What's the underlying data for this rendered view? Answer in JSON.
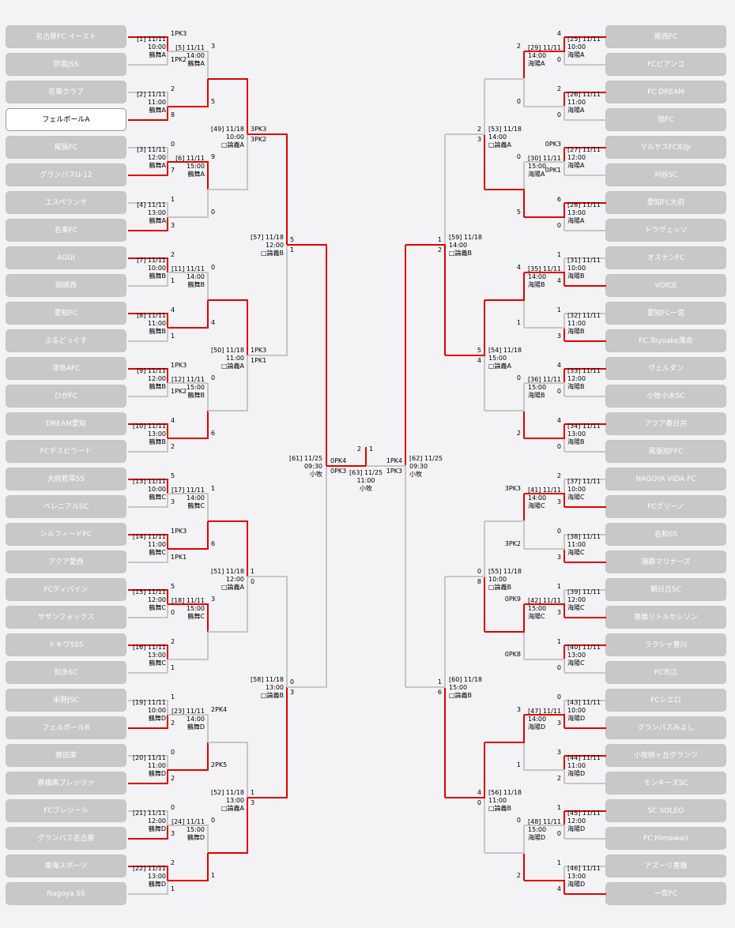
{
  "left_teams": [
    "名古屋FC イースト",
    "弥富JSS",
    "名東クラブ",
    "フェルボールA",
    "尾張FC",
    "グランパスU-12",
    "エスペランサ",
    "名東FC",
    "AGUI",
    "岡崎西",
    "愛知FC",
    "ぶるどっぐす",
    "津島AFC",
    "ひがFC",
    "DREAM愛知",
    "FCデスピラード",
    "大府若草SS",
    "ペレニアルSC",
    "シルフィードFC",
    "アクア愛西",
    "FCディバイン",
    "サザンフォックス",
    "トキワSSS",
    "知多SC",
    "米野JSC",
    "フェルボールB",
    "豊田東",
    "豊橋南ブレッツァ",
    "FCブレジール",
    "グランパス名古屋",
    "東海スポーツ",
    "Nagoya SS"
  ],
  "right_teams": [
    "尾西FC",
    "FCピアンコ",
    "FC DREAM",
    "旭FC",
    "マルヤスFC83Jr",
    "刈谷SC",
    "愛知FC大府",
    "トラヴェッソ",
    "オステンFC",
    "VOICE",
    "愛知FC一宮",
    "FC.Toyoake落合",
    "ヴェルダン",
    "小牧小木SC",
    "アクア春日井",
    "尾張旭FFC",
    "NAGOYA VIDA FC",
    "FCグリーノ",
    "名和SS",
    "蒲郡マリナーズ",
    "朝日丘SC",
    "豊橋リトルセレソン",
    "ララシャ豊川",
    "FC市江",
    "FCシエロ",
    "グランパスみよし",
    "小牧桃ヶ丘グランツ",
    "モンキーズSC",
    "SC SOLEO",
    "FC Himawari",
    "アズーリ豊橋",
    "一宮FC"
  ],
  "selected_team": "フェルボールA",
  "r1_left": [
    {
      "info": [
        "[1] 11/11",
        "10:00",
        "鶴舞A"
      ],
      "top": "1PK3",
      "bot": "1PK2",
      "win": "top"
    },
    {
      "info": [
        "[2] 11/11",
        "11:00",
        "鶴舞A"
      ],
      "top": "2",
      "bot": "8",
      "win": "bot"
    },
    {
      "info": [
        "[3] 11/11",
        "12:00",
        "鶴舞A"
      ],
      "top": "0",
      "bot": "7",
      "win": "bot"
    },
    {
      "info": [
        "[4] 11/11",
        "13:00",
        "鶴舞A"
      ],
      "top": "1",
      "bot": "3",
      "win": "bot"
    },
    {
      "info": [
        "[7] 11/11",
        "10:00",
        "鶴舞B"
      ],
      "top": "2",
      "bot": "1",
      "win": "top"
    },
    {
      "info": [
        "[8] 11/11",
        "11:00",
        "鶴舞B"
      ],
      "top": "4",
      "bot": "1",
      "win": "top"
    },
    {
      "info": [
        "[9] 11/11",
        "12:00",
        "鶴舞B"
      ],
      "top": "1PK3",
      "bot": "1PK2",
      "win": "top"
    },
    {
      "info": [
        "[10] 11/11",
        "13:00",
        "鶴舞B"
      ],
      "top": "4",
      "bot": "2",
      "win": "top"
    },
    {
      "info": [
        "[13] 11/11",
        "10:00",
        "鶴舞C"
      ],
      "top": "5",
      "bot": "3",
      "win": "top"
    },
    {
      "info": [
        "[14] 11/11",
        "11:00",
        "鶴舞C"
      ],
      "top": "1PK3",
      "bot": "1PK1",
      "win": "top"
    },
    {
      "info": [
        "[15] 11/11",
        "12:00",
        "鶴舞C"
      ],
      "top": "5",
      "bot": "0",
      "win": "top"
    },
    {
      "info": [
        "[16] 11/11",
        "13:00",
        "鶴舞C"
      ],
      "top": "2",
      "bot": "1",
      "win": "top"
    },
    {
      "info": [
        "[19] 11/11",
        "10:00",
        "鶴舞D"
      ],
      "top": "1",
      "bot": "2",
      "win": "bot"
    },
    {
      "info": [
        "[20] 11/11",
        "11:00",
        "鶴舞D"
      ],
      "top": "0",
      "bot": "2",
      "win": "bot"
    },
    {
      "info": [
        "[21] 11/11",
        "12:00",
        "鶴舞D"
      ],
      "top": "0",
      "bot": "3",
      "win": "bot"
    },
    {
      "info": [
        "[22] 11/11",
        "13:00",
        "鶴舞D"
      ],
      "top": "2",
      "bot": "1",
      "win": "top"
    }
  ],
  "r2_left": [
    {
      "info": [
        "[5] 11/11",
        "14:00",
        "鶴舞A"
      ],
      "top": "3",
      "bot": "5",
      "win": "bot"
    },
    {
      "info": [
        "[6] 11/11",
        "15:00",
        "鶴舞A"
      ],
      "top": "9",
      "bot": "0",
      "win": "top"
    },
    {
      "info": [
        "[11] 11/11",
        "14:00",
        "鶴舞B"
      ],
      "top": "0",
      "bot": "4",
      "win": "bot"
    },
    {
      "info": [
        "[12] 11/11",
        "15:00",
        "鶴舞B"
      ],
      "top": "0",
      "bot": "6",
      "win": "bot"
    },
    {
      "info": [
        "[17] 11/11",
        "14:00",
        "鶴舞C"
      ],
      "top": "1",
      "bot": "6",
      "win": "bot"
    },
    {
      "info": [
        "[18] 11/11",
        "15:00",
        "鶴舞C"
      ],
      "top": "3",
      "bot": "",
      "win": "top"
    },
    {
      "info": [
        "[23] 11/11",
        "14:00",
        "鶴舞D"
      ],
      "top": "2PK4",
      "bot": "2PK5",
      "win": "bot"
    },
    {
      "info": [
        "[24] 11/11",
        "15:00",
        "鶴舞D"
      ],
      "top": "0",
      "bot": "1",
      "win": "bot"
    }
  ],
  "r3_left": [
    {
      "info": [
        "[49] 11/18",
        "10:00",
        "□論義A"
      ],
      "top": "3PK3",
      "bot": "3PK2",
      "win": "top"
    },
    {
      "info": [
        "[50] 11/18",
        "11:00",
        "□論義A"
      ],
      "top": "1PK3",
      "bot": "1PK1",
      "win": "top"
    },
    {
      "info": [
        "[51] 11/18",
        "12:00",
        "□論義A"
      ],
      "top": "1",
      "bot": "0",
      "win": "top"
    },
    {
      "info": [
        "[52] 11/18",
        "13:00",
        "□論義A"
      ],
      "top": "1",
      "bot": "3",
      "win": "bot"
    }
  ],
  "r4_left": [
    {
      "info": [
        "[57] 11/18",
        "12:00",
        "□論義B"
      ],
      "top": "5",
      "bot": "1",
      "win": "top"
    },
    {
      "info": [
        "[58] 11/18",
        "13:00",
        "□論義B"
      ],
      "top": "0",
      "bot": "3",
      "win": "bot"
    }
  ],
  "r5_left": {
    "info": [
      "[61] 11/25",
      "09:30",
      "小牧"
    ],
    "top": "0PK4",
    "bot": "0PK3",
    "win": "top"
  },
  "r1_right": [
    {
      "info": [
        "[25] 11/11",
        "10:00",
        "海陽A"
      ],
      "top": "4",
      "bot": "0",
      "win": "top"
    },
    {
      "info": [
        "[26] 11/11",
        "11:00",
        "海陽A"
      ],
      "top": "2",
      "bot": "0",
      "win": "top"
    },
    {
      "info": [
        "[27] 11/11",
        "12:00",
        "海陽A"
      ],
      "top": "0PK3",
      "bot": "0PK1",
      "win": "top"
    },
    {
      "info": [
        "[28] 11/11",
        "13:00",
        "海陽A"
      ],
      "top": "6",
      "bot": "0",
      "win": "top"
    },
    {
      "info": [
        "[31] 11/11",
        "10:00",
        "海陽B"
      ],
      "top": "1",
      "bot": "4",
      "win": "bot"
    },
    {
      "info": [
        "[32] 11/11",
        "11:00",
        "海陽B"
      ],
      "top": "1",
      "bot": "3",
      "win": "bot"
    },
    {
      "info": [
        "[33] 11/11",
        "12:00",
        "海陽B"
      ],
      "top": "4",
      "bot": "0",
      "win": "top"
    },
    {
      "info": [
        "[34] 11/11",
        "13:00",
        "海陽B"
      ],
      "top": "4",
      "bot": "0",
      "win": "top"
    },
    {
      "info": [
        "[37] 11/11",
        "10:00",
        "海陽C"
      ],
      "top": "2",
      "bot": "3",
      "win": "bot"
    },
    {
      "info": [
        "[38] 11/11",
        "11:00",
        "海陽C"
      ],
      "top": "0",
      "bot": "3",
      "win": "bot"
    },
    {
      "info": [
        "[39] 11/11",
        "12:00",
        "海陽C"
      ],
      "top": "1",
      "bot": "3",
      "win": "bot"
    },
    {
      "info": [
        "[40] 11/11",
        "13:00",
        "海陽C"
      ],
      "top": "1",
      "bot": "0",
      "win": "top"
    },
    {
      "info": [
        "[43] 11/11",
        "10:00",
        "海陽D"
      ],
      "top": "0",
      "bot": "3",
      "win": "bot"
    },
    {
      "info": [
        "[44] 11/11",
        "11:00",
        "海陽D"
      ],
      "top": "3",
      "bot": "2",
      "win": "top"
    },
    {
      "info": [
        "[45] 11/11",
        "12:00",
        "海陽D"
      ],
      "top": "1",
      "bot": "0",
      "win": "top"
    },
    {
      "info": [
        "[46] 11/11",
        "13:00",
        "海陽D"
      ],
      "top": "1",
      "bot": "4",
      "win": "bot"
    }
  ],
  "r2_right": [
    {
      "info": [
        "[29] 11/11",
        "14:00",
        "海陽A"
      ],
      "top": "2",
      "bot": "0",
      "win": "top"
    },
    {
      "info": [
        "[30] 11/11",
        "15:00",
        "海陽A"
      ],
      "top": "0",
      "bot": "5",
      "win": "bot"
    },
    {
      "info": [
        "[35] 11/11",
        "14:00",
        "海陽B"
      ],
      "top": "4",
      "bot": "1",
      "win": "top"
    },
    {
      "info": [
        "[36] 11/11",
        "15:00",
        "海陽B"
      ],
      "top": "0",
      "bot": "2",
      "win": "bot"
    },
    {
      "info": [
        "[41] 11/11",
        "14:00",
        "海陽C"
      ],
      "top": "3PK3",
      "bot": "3PK2",
      "win": "top"
    },
    {
      "info": [
        "[42] 11/11",
        "15:00",
        "海陽C"
      ],
      "top": "0PK9",
      "bot": "0PK8",
      "win": "top"
    },
    {
      "info": [
        "[47] 11/11",
        "14:00",
        "海陽D"
      ],
      "top": "3",
      "bot": "1",
      "win": "top"
    },
    {
      "info": [
        "[48] 11/11",
        "15:00",
        "海陽D"
      ],
      "top": "0",
      "bot": "2",
      "win": "bot"
    }
  ],
  "r3_right": [
    {
      "info": [
        "[53] 11/18",
        "14:00",
        "□論義A"
      ],
      "top": "2",
      "bot": "3",
      "win": "bot"
    },
    {
      "info": [
        "[54] 11/18",
        "15:00",
        "□論義A"
      ],
      "top": "5",
      "bot": "4",
      "win": "top"
    },
    {
      "info": [
        "[55] 11/18",
        "10:00",
        "□論義B"
      ],
      "top": "0",
      "bot": "8",
      "win": "bot"
    },
    {
      "info": [
        "[56] 11/18",
        "11:00",
        "□論義B"
      ],
      "top": "4",
      "bot": "0",
      "win": "top"
    }
  ],
  "r4_right": [
    {
      "info": [
        "[59] 11/18",
        "14:00",
        "□論義B"
      ],
      "top": "1",
      "bot": "2",
      "win": "bot"
    },
    {
      "info": [
        "[60] 11/18",
        "15:00",
        "□論義B"
      ],
      "top": "1",
      "bot": "6",
      "win": "bot"
    }
  ],
  "r5_right": {
    "info": [
      "[62] 11/25",
      "09:30",
      "小牧"
    ],
    "top": "1PK4",
    "bot": "1PK3",
    "win": "top"
  },
  "final": {
    "info": [
      "[63] 11/25",
      "11:00",
      "小牧"
    ],
    "left_score": "2",
    "right_score": "1"
  },
  "colors": {
    "win_line": "#e00000",
    "lose_line": "#c6c6c6",
    "team_box": "#c8c8c8",
    "background": "#f3f2f4"
  }
}
